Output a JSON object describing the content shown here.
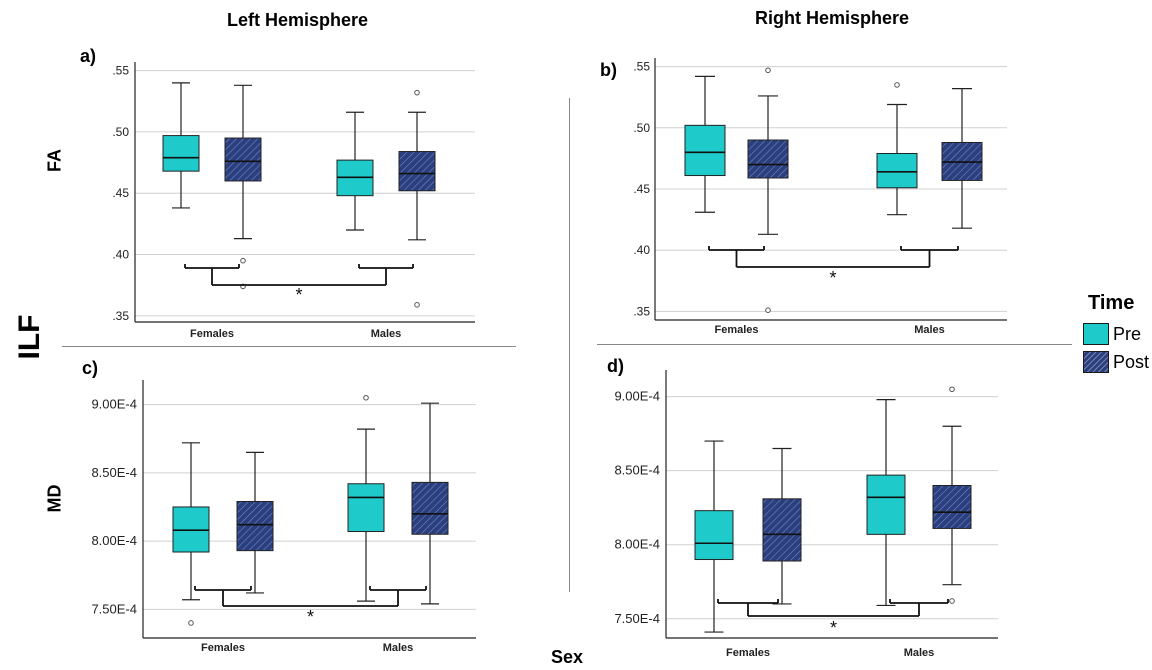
{
  "headings": {
    "left": "Left Hemisphere",
    "right": "Right Hemisphere",
    "tract": "ILF",
    "xaxis": "Sex",
    "row_fa": "FA",
    "row_md": "MD"
  },
  "legend": {
    "title": "Time",
    "items": [
      {
        "label": "Pre",
        "color": "#1fcaca"
      },
      {
        "label": "Post",
        "color": "#2b3f7e"
      }
    ]
  },
  "colors": {
    "pre": "#1fcaca",
    "post": "#2b3f7e",
    "grid": "#d0d0d0"
  },
  "significance_marker": "*",
  "chart_data": [
    {
      "panel": "a)",
      "type": "box",
      "categories": [
        "Females",
        "Males"
      ],
      "yticks": [
        ".35",
        ".40",
        ".45",
        ".50",
        ".55"
      ],
      "ytick_values": [
        0.35,
        0.4,
        0.45,
        0.5,
        0.55
      ],
      "ylim": [
        0.345,
        0.557
      ],
      "series": [
        {
          "name": "Pre",
          "boxes": [
            {
              "min": 0.438,
              "q1": 0.468,
              "median": 0.479,
              "q3": 0.497,
              "max": 0.54,
              "outliers": []
            },
            {
              "min": 0.42,
              "q1": 0.448,
              "median": 0.463,
              "q3": 0.477,
              "max": 0.516,
              "outliers": []
            }
          ]
        },
        {
          "name": "Post",
          "boxes": [
            {
              "min": 0.413,
              "q1": 0.46,
              "median": 0.476,
              "q3": 0.495,
              "max": 0.538,
              "outliers": [
                0.395,
                0.374
              ]
            },
            {
              "min": 0.412,
              "q1": 0.452,
              "median": 0.466,
              "q3": 0.484,
              "max": 0.516,
              "outliers": [
                0.532,
                0.359
              ]
            }
          ]
        }
      ]
    },
    {
      "panel": "b)",
      "type": "box",
      "categories": [
        "Females",
        "Males"
      ],
      "yticks": [
        ".35",
        ".40",
        ".45",
        ".50",
        ".55"
      ],
      "ytick_values": [
        0.35,
        0.4,
        0.45,
        0.5,
        0.55
      ],
      "ylim": [
        0.343,
        0.557
      ],
      "series": [
        {
          "name": "Pre",
          "boxes": [
            {
              "min": 0.431,
              "q1": 0.461,
              "median": 0.48,
              "q3": 0.502,
              "max": 0.542,
              "outliers": []
            },
            {
              "min": 0.429,
              "q1": 0.451,
              "median": 0.464,
              "q3": 0.479,
              "max": 0.519,
              "outliers": [
                0.535
              ]
            }
          ]
        },
        {
          "name": "Post",
          "boxes": [
            {
              "min": 0.413,
              "q1": 0.459,
              "median": 0.47,
              "q3": 0.49,
              "max": 0.526,
              "outliers": [
                0.547,
                0.351
              ]
            },
            {
              "min": 0.418,
              "q1": 0.457,
              "median": 0.472,
              "q3": 0.488,
              "max": 0.532,
              "outliers": []
            }
          ]
        }
      ]
    },
    {
      "panel": "c)",
      "type": "box",
      "categories": [
        "Females",
        "Males"
      ],
      "yticks": [
        "7.50E-4",
        "8.00E-4",
        "8.50E-4",
        "9.00E-4"
      ],
      "ytick_values": [
        0.00075,
        0.0008,
        0.00085,
        0.0009
      ],
      "ylim": [
        0.000729,
        0.000918
      ],
      "series": [
        {
          "name": "Pre",
          "boxes": [
            {
              "min": 0.000757,
              "q1": 0.000792,
              "median": 0.000808,
              "q3": 0.000825,
              "max": 0.000872,
              "outliers": [
                0.00074
              ]
            },
            {
              "min": 0.000756,
              "q1": 0.000807,
              "median": 0.000832,
              "q3": 0.000842,
              "max": 0.000882,
              "outliers": [
                0.000905
              ]
            }
          ]
        },
        {
          "name": "Post",
          "boxes": [
            {
              "min": 0.000762,
              "q1": 0.000793,
              "median": 0.000812,
              "q3": 0.000829,
              "max": 0.000865,
              "outliers": []
            },
            {
              "min": 0.000754,
              "q1": 0.000805,
              "median": 0.00082,
              "q3": 0.000843,
              "max": 0.000901,
              "outliers": []
            }
          ]
        }
      ]
    },
    {
      "panel": "d)",
      "type": "box",
      "categories": [
        "Females",
        "Males"
      ],
      "yticks": [
        "7.50E-4",
        "8.00E-4",
        "8.50E-4",
        "9.00E-4"
      ],
      "ytick_values": [
        0.00075,
        0.0008,
        0.00085,
        0.0009
      ],
      "ylim": [
        0.000737,
        0.000918
      ],
      "series": [
        {
          "name": "Pre",
          "boxes": [
            {
              "min": 0.000741,
              "q1": 0.00079,
              "median": 0.000801,
              "q3": 0.000823,
              "max": 0.00087,
              "outliers": []
            },
            {
              "min": 0.000759,
              "q1": 0.000807,
              "median": 0.000832,
              "q3": 0.000847,
              "max": 0.000898,
              "outliers": []
            }
          ]
        },
        {
          "name": "Post",
          "boxes": [
            {
              "min": 0.00076,
              "q1": 0.000789,
              "median": 0.000807,
              "q3": 0.000831,
              "max": 0.000865,
              "outliers": []
            },
            {
              "min": 0.000773,
              "q1": 0.000811,
              "median": 0.000822,
              "q3": 0.00084,
              "max": 0.00088,
              "outliers": [
                0.000905,
                0.000762
              ]
            }
          ]
        }
      ]
    }
  ]
}
